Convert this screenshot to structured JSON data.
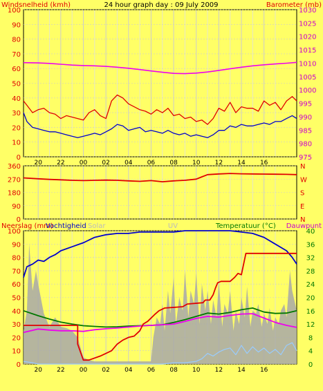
{
  "title": "24 hour graph day : 09 July 2009",
  "colors": {
    "background": "#FFFF66",
    "wind_red": "#E00000",
    "blue": "#0000CC",
    "magenta": "#EE00EE",
    "green": "#007700",
    "gray": "#A8A8A8",
    "light_blue": "#99CCFF",
    "grid": "#CCCCCC"
  },
  "chart_data": [
    {
      "type": "line",
      "left_label": "Windsnelheid (kmh)",
      "right_label": "Barometer (mb)",
      "y_ticks": [
        0,
        10,
        20,
        30,
        40,
        50,
        60,
        70,
        80,
        90,
        100
      ],
      "y2_ticks": [
        975,
        980,
        985,
        990,
        995,
        1000,
        1005,
        1010,
        1015,
        1020,
        1025,
        1030
      ],
      "ylim": [
        0,
        100
      ],
      "y2lim": [
        975,
        1030
      ],
      "x_ticks": [
        "20",
        "22",
        "00",
        "02",
        "04",
        "06",
        "08",
        "10",
        "12",
        "14",
        "16"
      ],
      "x_hours": [
        -5,
        -3,
        -1,
        1,
        3,
        5,
        7,
        9,
        11,
        13,
        15
      ],
      "x_range": [
        -6.3,
        17.9
      ],
      "series": [
        {
          "key": "wind_gust",
          "color": "#E00000",
          "x": [
            -6.3,
            -6,
            -5.5,
            -5,
            -4.5,
            -4,
            -3.5,
            -3,
            -2.5,
            -2,
            -1.5,
            -1,
            -0.5,
            0,
            0.5,
            1,
            1.5,
            2,
            2.5,
            3,
            3.5,
            4,
            4.5,
            5,
            5.5,
            6,
            6.5,
            7,
            7.5,
            8,
            8.5,
            9,
            9.5,
            10,
            10.5,
            11,
            11.5,
            12,
            12.5,
            13,
            13.5,
            14,
            14.5,
            15,
            15.5,
            16,
            16.5,
            17,
            17.5,
            17.9
          ],
          "y": [
            38,
            35,
            30,
            32,
            33,
            30,
            29,
            26,
            28,
            27,
            26,
            25,
            30,
            32,
            28,
            26,
            38,
            42,
            40,
            36,
            34,
            32,
            31,
            29,
            32,
            30,
            33,
            28,
            29,
            26,
            27,
            24,
            25,
            22,
            26,
            33,
            31,
            37,
            30,
            34,
            33,
            33,
            31,
            38,
            35,
            37,
            32,
            38,
            41,
            38
          ]
        },
        {
          "key": "wind_avg",
          "color": "#0000CC",
          "x": [
            -6.3,
            -6,
            -5.5,
            -5,
            -4.5,
            -4,
            -3.5,
            -3,
            -2.5,
            -2,
            -1.5,
            -1,
            -0.5,
            0,
            0.5,
            1,
            1.5,
            2,
            2.5,
            3,
            3.5,
            4,
            4.5,
            5,
            5.5,
            6,
            6.5,
            7,
            7.5,
            8,
            8.5,
            9,
            9.5,
            10,
            10.5,
            11,
            11.5,
            12,
            12.5,
            13,
            13.5,
            14,
            14.5,
            15,
            15.5,
            16,
            16.5,
            17,
            17.5,
            17.9
          ],
          "y": [
            30,
            24,
            20,
            19,
            18,
            17,
            17,
            16,
            15,
            14,
            13,
            14,
            15,
            16,
            15,
            17,
            19,
            22,
            21,
            18,
            19,
            20,
            17,
            18,
            17,
            16,
            18,
            16,
            15,
            16,
            14,
            15,
            14,
            13,
            15,
            18,
            18,
            21,
            20,
            22,
            21,
            21,
            22,
            23,
            22,
            24,
            24,
            26,
            28,
            26
          ]
        },
        {
          "key": "barometer",
          "axis": "y2",
          "color": "#EE00EE",
          "x": [
            -6.3,
            -5,
            -4,
            -3,
            -2,
            -1,
            0,
            1,
            2,
            3,
            4,
            5,
            6,
            7,
            8,
            9,
            10,
            11,
            12,
            13,
            14,
            15,
            16,
            17,
            17.9
          ],
          "y": [
            1010.2,
            1010.1,
            1009.9,
            1009.6,
            1009.3,
            1009.1,
            1009,
            1008.8,
            1008.5,
            1008.1,
            1007.6,
            1007.1,
            1006.6,
            1006.2,
            1006.1,
            1006.3,
            1006.7,
            1007.3,
            1007.9,
            1008.5,
            1009,
            1009.4,
            1009.7,
            1010,
            1010.3
          ]
        }
      ]
    },
    {
      "type": "line",
      "right_labels": [
        "N",
        "W",
        "S",
        "E",
        "N"
      ],
      "y_ticks": [
        0,
        90,
        180,
        270,
        360
      ],
      "ylim": [
        0,
        360
      ],
      "series": [
        {
          "key": "wind_direction",
          "color": "#E00000",
          "x": [
            -6.3,
            -5,
            -4,
            -3,
            -2,
            -1,
            0,
            1,
            2,
            3,
            4,
            5,
            6,
            7,
            8,
            9,
            9.5,
            10,
            11,
            12,
            13,
            14,
            15,
            16,
            17,
            17.9
          ],
          "y": [
            278,
            272,
            268,
            265,
            262,
            260,
            262,
            263,
            262,
            258,
            255,
            260,
            252,
            258,
            262,
            270,
            285,
            300,
            305,
            308,
            306,
            305,
            304,
            303,
            302,
            300
          ]
        }
      ]
    },
    {
      "type": "line",
      "left_labels": [
        "Neerslag (mm)",
        "Vochtigheid",
        "Solar"
      ],
      "center_label": "UV",
      "right_labels": [
        "Temperatuur (°C)",
        "Dauwpunt"
      ],
      "y_ticks": [
        0,
        10,
        20,
        30,
        40,
        50,
        60,
        70,
        80,
        90,
        100
      ],
      "ylim": [
        0,
        100
      ],
      "y2_ticks": [
        0,
        4,
        8,
        12,
        16,
        20,
        24,
        28,
        32,
        36,
        40
      ],
      "y2lim": [
        0,
        40
      ],
      "x_ticks": [
        "20",
        "22",
        "00",
        "02",
        "04",
        "06",
        "08",
        "10",
        "12",
        "14",
        "16"
      ],
      "series": [
        {
          "key": "humidity",
          "color": "#0000CC",
          "x": [
            -6.3,
            -6,
            -5.5,
            -5,
            -4.5,
            -4,
            -3.5,
            -3,
            -2,
            -1,
            0,
            1,
            2,
            3,
            4,
            5,
            6,
            7,
            8,
            9,
            10,
            11,
            12,
            13,
            14,
            15,
            16,
            17,
            17.5,
            17.9
          ],
          "y": [
            65,
            73,
            75,
            78,
            77,
            80,
            82,
            85,
            88,
            91,
            95,
            97,
            98,
            98,
            99,
            99,
            99,
            99,
            100,
            100,
            100,
            100,
            100,
            99,
            98,
            95,
            90,
            85,
            80,
            75
          ]
        },
        {
          "key": "temperature",
          "axis": "y2",
          "color": "#007700",
          "x": [
            -6.3,
            -5,
            -4,
            -3,
            -2,
            -1,
            0,
            1,
            2,
            3,
            4,
            5,
            6,
            7,
            8,
            9,
            10,
            11,
            12,
            13,
            14,
            15,
            16,
            17,
            17.9
          ],
          "y": [
            16,
            14.5,
            13.5,
            12.6,
            12,
            11.5,
            11.3,
            11.1,
            11.2,
            11.4,
            11.5,
            11.6,
            11.8,
            12.5,
            13.3,
            14.3,
            15.3,
            15.0,
            15.5,
            16.3,
            16.8,
            15.6,
            15.2,
            15.3,
            16
          ]
        },
        {
          "key": "dewpoint",
          "axis": "y2",
          "color": "#EE00EE",
          "x": [
            -6.3,
            -5,
            -4,
            -3,
            -2,
            -1,
            0,
            1,
            2,
            3,
            4,
            5,
            6,
            7,
            8,
            9,
            10,
            11,
            12,
            13,
            14,
            15,
            16,
            17,
            17.9
          ],
          "y": [
            9.5,
            10.5,
            10.2,
            10.0,
            10.0,
            9.8,
            10.3,
            10.6,
            10.8,
            11.1,
            11.4,
            11.6,
            11.8,
            12.0,
            12.8,
            13.7,
            14.3,
            14.1,
            14.6,
            15.0,
            15.1,
            13.8,
            12.5,
            11.6,
            11.0
          ]
        },
        {
          "key": "rain",
          "color": "#E00000",
          "x": [
            -6.3,
            -1.5,
            -1.5,
            -1,
            -0.5,
            0.5,
            1,
            1.5,
            2,
            2.5,
            3,
            3.5,
            4,
            4.3,
            4.7,
            5.3,
            5.7,
            6.2,
            7.8,
            8.2,
            9.6,
            9.8,
            10.2,
            10.5,
            10.7,
            10.9,
            11.2,
            12,
            12.4,
            12.7,
            13,
            13.4,
            17.9
          ],
          "y": [
            29,
            29,
            15,
            3,
            3,
            6,
            8,
            10,
            15,
            18,
            20,
            21,
            25,
            30,
            32,
            37,
            40,
            42,
            43,
            45,
            46,
            48,
            48,
            52,
            57,
            61,
            62,
            62,
            65,
            68,
            67,
            83,
            83
          ]
        },
        {
          "key": "solar",
          "color": "#A8A8A8",
          "fill": true,
          "x": [
            -6.3,
            -6,
            -5.8,
            -5.5,
            -5.2,
            -5,
            -4.5,
            -4,
            -3.5,
            -3,
            -2.5,
            -2,
            -1.5,
            -1,
            -0.5,
            0,
            0.5,
            1,
            1.5,
            2,
            2.5,
            3,
            3.5,
            4,
            4.5,
            5,
            5.2,
            5.5,
            5.8,
            6,
            6.2,
            6.5,
            6.7,
            7,
            7.2,
            7.5,
            7.8,
            8,
            8.3,
            8.5,
            8.8,
            9,
            9.3,
            9.5,
            9.8,
            10,
            10.3,
            10.5,
            10.8,
            11,
            11.3,
            11.5,
            11.8,
            12,
            12.3,
            12.5,
            12.8,
            13,
            13.3,
            13.5,
            13.8,
            14,
            14.3,
            14.5,
            14.8,
            15,
            15.3,
            15.5,
            15.8,
            16,
            16.3,
            16.5,
            16.8,
            17,
            17.3,
            17.5,
            17.9
          ],
          "y": [
            25,
            40,
            90,
            55,
            70,
            60,
            38,
            28,
            35,
            28,
            27,
            25,
            20,
            5,
            3,
            2,
            2,
            2,
            2,
            2,
            2,
            2,
            2,
            2,
            2,
            2,
            20,
            35,
            30,
            45,
            25,
            55,
            38,
            65,
            30,
            50,
            40,
            70,
            35,
            55,
            45,
            68,
            30,
            60,
            40,
            55,
            30,
            48,
            35,
            62,
            28,
            45,
            38,
            55,
            25,
            40,
            30,
            50,
            35,
            58,
            28,
            40,
            38,
            45,
            28,
            38,
            30,
            42,
            25,
            35,
            30,
            40,
            45,
            35,
            70,
            55,
            40
          ]
        },
        {
          "key": "uv",
          "color": "#99CCFF",
          "x": [
            -6.3,
            -5.5,
            -5,
            -4.5,
            -4,
            0,
            2,
            4,
            6,
            7,
            8,
            9,
            9.5,
            10,
            10.5,
            11,
            11.5,
            12,
            12.5,
            13,
            13.5,
            14,
            14.5,
            15,
            15.5,
            16,
            16.5,
            17,
            17.5,
            17.9
          ],
          "y": [
            2,
            1,
            0,
            0,
            0,
            0,
            0,
            0,
            0,
            1,
            1,
            2,
            4,
            8,
            6,
            9,
            11,
            12,
            7,
            14,
            8,
            13,
            9,
            12,
            8,
            11,
            7,
            14,
            16,
            10
          ]
        }
      ]
    }
  ]
}
